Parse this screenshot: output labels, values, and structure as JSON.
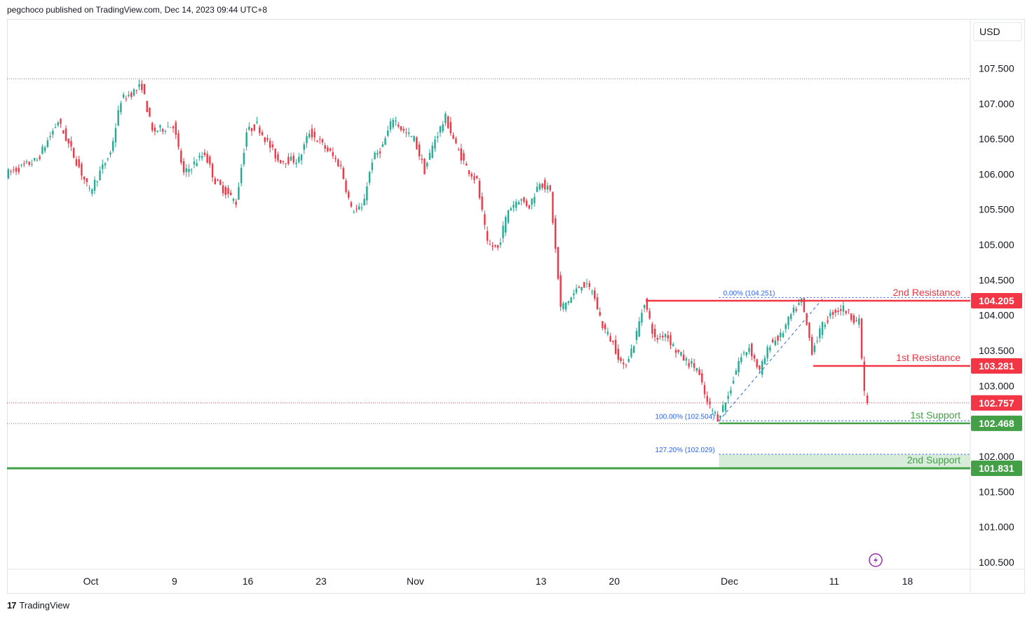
{
  "header": {
    "published_by": "pegchoco published on TradingView.com, Dec 14, 2023 09:44 UTC+8"
  },
  "footer": {
    "logo_mark": "17",
    "logo_text": "TradingView"
  },
  "colors": {
    "up": "#22ab94",
    "down": "#f23645",
    "resistance": "#f23645",
    "support": "#43a047",
    "fib": "#2962ff",
    "support_zone": "#c8e6c9",
    "axis_text": "#131722"
  },
  "icons": {
    "lightning": "lightning-icon"
  },
  "chart_data": {
    "type": "candlestick",
    "currency": "USD",
    "price_ticks": [
      "107.500",
      "107.000",
      "106.500",
      "106.000",
      "105.500",
      "105.000",
      "104.500",
      "104.000",
      "103.500",
      "103.000",
      "102.500",
      "102.000",
      "101.500",
      "101.000",
      "100.500"
    ],
    "ylim": [
      100.4,
      108.2
    ],
    "x_labels": [
      {
        "label": "Oct",
        "date": "2023-10-01"
      },
      {
        "label": "9",
        "date": "2023-10-09"
      },
      {
        "label": "16",
        "date": "2023-10-16"
      },
      {
        "label": "23",
        "date": "2023-10-23"
      },
      {
        "label": "Nov",
        "date": "2023-11-01"
      },
      {
        "label": "13",
        "date": "2023-11-13"
      },
      {
        "label": "20",
        "date": "2023-11-20"
      },
      {
        "label": "Dec",
        "date": "2023-12-01"
      },
      {
        "label": "11",
        "date": "2023-12-11"
      },
      {
        "label": "18",
        "date": "2023-12-18"
      }
    ],
    "xlim": [
      "2023-09-23",
      "2023-12-24"
    ],
    "price_path": [
      {
        "date": "2023-09-23",
        "price": 106.0
      },
      {
        "date": "2023-09-26",
        "price": 106.2
      },
      {
        "date": "2023-09-28",
        "price": 106.75
      },
      {
        "date": "2023-09-30",
        "price": 106.1
      },
      {
        "date": "2023-10-01",
        "price": 105.75
      },
      {
        "date": "2023-10-03",
        "price": 106.3
      },
      {
        "date": "2023-10-04",
        "price": 107.05
      },
      {
        "date": "2023-10-06",
        "price": 107.25
      },
      {
        "date": "2023-10-07",
        "price": 106.6
      },
      {
        "date": "2023-10-09",
        "price": 106.7
      },
      {
        "date": "2023-10-10",
        "price": 106.0
      },
      {
        "date": "2023-10-12",
        "price": 106.3
      },
      {
        "date": "2023-10-13",
        "price": 105.9
      },
      {
        "date": "2023-10-15",
        "price": 105.6
      },
      {
        "date": "2023-10-16",
        "price": 106.6
      },
      {
        "date": "2023-10-17",
        "price": 106.7
      },
      {
        "date": "2023-10-19",
        "price": 106.2
      },
      {
        "date": "2023-10-21",
        "price": 106.2
      },
      {
        "date": "2023-10-22",
        "price": 106.6
      },
      {
        "date": "2023-10-24",
        "price": 106.3
      },
      {
        "date": "2023-10-25",
        "price": 106.1
      },
      {
        "date": "2023-10-26",
        "price": 105.5
      },
      {
        "date": "2023-10-27",
        "price": 105.5
      },
      {
        "date": "2023-10-28",
        "price": 106.2
      },
      {
        "date": "2023-10-29",
        "price": 106.4
      },
      {
        "date": "2023-10-30",
        "price": 106.8
      },
      {
        "date": "2023-10-31",
        "price": 106.6
      },
      {
        "date": "2023-11-01",
        "price": 106.5
      },
      {
        "date": "2023-11-02",
        "price": 106.05
      },
      {
        "date": "2023-11-03",
        "price": 106.5
      },
      {
        "date": "2023-11-04",
        "price": 106.8
      },
      {
        "date": "2023-11-05",
        "price": 106.4
      },
      {
        "date": "2023-11-06",
        "price": 106.1
      },
      {
        "date": "2023-11-07",
        "price": 105.9
      },
      {
        "date": "2023-11-08",
        "price": 105.0
      },
      {
        "date": "2023-11-09",
        "price": 104.95
      },
      {
        "date": "2023-11-10",
        "price": 105.5
      },
      {
        "date": "2023-11-11",
        "price": 105.65
      },
      {
        "date": "2023-11-12",
        "price": 105.55
      },
      {
        "date": "2023-11-13",
        "price": 105.9
      },
      {
        "date": "2023-11-14",
        "price": 105.75
      },
      {
        "date": "2023-11-15",
        "price": 104.1
      },
      {
        "date": "2023-11-16",
        "price": 104.25
      },
      {
        "date": "2023-11-17",
        "price": 104.45
      },
      {
        "date": "2023-11-18",
        "price": 104.35
      },
      {
        "date": "2023-11-19",
        "price": 103.85
      },
      {
        "date": "2023-11-20",
        "price": 103.6
      },
      {
        "date": "2023-11-21",
        "price": 103.25
      },
      {
        "date": "2023-11-22",
        "price": 103.6
      },
      {
        "date": "2023-11-23",
        "price": 104.2
      },
      {
        "date": "2023-11-24",
        "price": 103.65
      },
      {
        "date": "2023-11-25",
        "price": 103.75
      },
      {
        "date": "2023-11-26",
        "price": 103.5
      },
      {
        "date": "2023-11-27",
        "price": 103.35
      },
      {
        "date": "2023-11-28",
        "price": 103.25
      },
      {
        "date": "2023-11-29",
        "price": 102.75
      },
      {
        "date": "2023-11-30",
        "price": 102.55
      },
      {
        "date": "2023-12-01",
        "price": 102.85
      },
      {
        "date": "2023-12-02",
        "price": 103.35
      },
      {
        "date": "2023-12-03",
        "price": 103.55
      },
      {
        "date": "2023-12-04",
        "price": 103.2
      },
      {
        "date": "2023-12-05",
        "price": 103.6
      },
      {
        "date": "2023-12-06",
        "price": 103.7
      },
      {
        "date": "2023-12-07",
        "price": 104.0
      },
      {
        "date": "2023-12-08",
        "price": 104.2
      },
      {
        "date": "2023-12-09",
        "price": 103.5
      },
      {
        "date": "2023-12-10",
        "price": 103.85
      },
      {
        "date": "2023-12-11",
        "price": 104.05
      },
      {
        "date": "2023-12-12",
        "price": 104.1
      },
      {
        "date": "2023-12-13",
        "price": 103.95
      },
      {
        "date": "2023-12-13T12:00",
        "price": 103.9
      },
      {
        "date": "2023-12-14",
        "price": 102.9
      },
      {
        "date": "2023-12-14T08:00",
        "price": 102.76
      }
    ],
    "horizontal_levels": [
      {
        "id": "resistance-2",
        "name": "2nd Resistance",
        "value": "104.205",
        "price": 104.205,
        "kind": "resistance",
        "start": "2023-11-23"
      },
      {
        "id": "resistance-1",
        "name": "1st Resistance",
        "value": "103.281",
        "price": 103.281,
        "kind": "resistance",
        "start": "2023-12-09"
      },
      {
        "id": "support-1",
        "name": "1st Support",
        "value": "102.468",
        "price": 102.468,
        "kind": "support",
        "start": "2023-11-30"
      },
      {
        "id": "support-2",
        "name": "2nd Support",
        "value": "101.831",
        "price": 101.831,
        "kind": "support",
        "start": "2023-09-23"
      }
    ],
    "current_price": {
      "value": "102.757",
      "price": 102.757
    },
    "fibonacci": [
      {
        "label": "0.00% (104.251)",
        "price": 104.251
      },
      {
        "label": "100.00% (102.504)",
        "price": 102.504
      },
      {
        "label": "127.20% (102.029)",
        "price": 102.029
      }
    ],
    "fib_anchor_start": "2023-11-30",
    "fib_trend": [
      {
        "date": "2023-11-30",
        "price": 102.504
      },
      {
        "date": "2023-12-10",
        "price": 104.251
      }
    ],
    "support_zone": {
      "from": 101.831,
      "to": 102.029,
      "start": "2023-11-30"
    },
    "period_high": {
      "price": 107.35
    },
    "grid": false
  }
}
